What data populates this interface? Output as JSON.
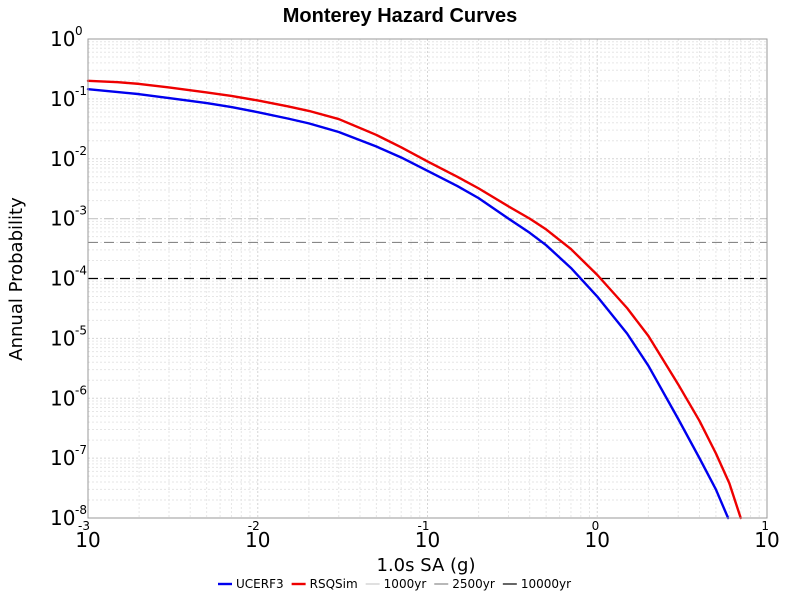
{
  "chart_data": {
    "type": "line",
    "title": "Monterey Hazard Curves",
    "xlabel": "1.0s SA (g)",
    "ylabel": "Annual Probability",
    "xscale": "log",
    "yscale": "log",
    "xlim": [
      0.001,
      10
    ],
    "ylim": [
      1e-08,
      1
    ],
    "x_ticks": [
      {
        "base": "10",
        "exp": "-3",
        "value": 0.001
      },
      {
        "base": "10",
        "exp": "-2",
        "value": 0.01
      },
      {
        "base": "10",
        "exp": "-1",
        "value": 0.1
      },
      {
        "base": "10",
        "exp": "0",
        "value": 1
      },
      {
        "base": "10",
        "exp": "1",
        "value": 10
      }
    ],
    "y_ticks": [
      {
        "base": "10",
        "exp": "0",
        "value": 1
      },
      {
        "base": "10",
        "exp": "-1",
        "value": 0.1
      },
      {
        "base": "10",
        "exp": "-2",
        "value": 0.01
      },
      {
        "base": "10",
        "exp": "-3",
        "value": 0.001
      },
      {
        "base": "10",
        "exp": "-4",
        "value": 0.0001
      },
      {
        "base": "10",
        "exp": "-5",
        "value": 1e-05
      },
      {
        "base": "10",
        "exp": "-6",
        "value": 1e-06
      },
      {
        "base": "10",
        "exp": "-7",
        "value": 1e-07
      },
      {
        "base": "10",
        "exp": "-8",
        "value": 1e-08
      }
    ],
    "grid": true,
    "legend_position": "bottom",
    "series": [
      {
        "name": "UCERF3",
        "color": "#0000ee",
        "points": [
          [
            0.001,
            0.145
          ],
          [
            0.0015,
            0.13
          ],
          [
            0.002,
            0.12
          ],
          [
            0.003,
            0.103
          ],
          [
            0.005,
            0.085
          ],
          [
            0.007,
            0.073
          ],
          [
            0.01,
            0.06
          ],
          [
            0.015,
            0.047
          ],
          [
            0.02,
            0.039
          ],
          [
            0.03,
            0.028
          ],
          [
            0.05,
            0.016
          ],
          [
            0.07,
            0.0105
          ],
          [
            0.1,
            0.0063
          ],
          [
            0.15,
            0.0035
          ],
          [
            0.2,
            0.0022
          ],
          [
            0.3,
            0.001
          ],
          [
            0.4,
            0.00058
          ],
          [
            0.5,
            0.00036
          ],
          [
            0.7,
            0.00015
          ],
          [
            1.0,
            5e-05
          ],
          [
            1.5,
            1.2e-05
          ],
          [
            2.0,
            3.5e-06
          ],
          [
            3.0,
            4.5e-07
          ],
          [
            4.0,
            1e-07
          ],
          [
            5.0,
            3e-08
          ],
          [
            5.9,
            1e-08
          ]
        ]
      },
      {
        "name": "RSQSim",
        "color": "#ee0000",
        "points": [
          [
            0.001,
            0.2
          ],
          [
            0.0015,
            0.19
          ],
          [
            0.002,
            0.178
          ],
          [
            0.003,
            0.155
          ],
          [
            0.005,
            0.128
          ],
          [
            0.007,
            0.112
          ],
          [
            0.01,
            0.094
          ],
          [
            0.015,
            0.075
          ],
          [
            0.02,
            0.063
          ],
          [
            0.03,
            0.046
          ],
          [
            0.05,
            0.025
          ],
          [
            0.07,
            0.0155
          ],
          [
            0.1,
            0.009
          ],
          [
            0.15,
            0.005
          ],
          [
            0.2,
            0.0032
          ],
          [
            0.3,
            0.0016
          ],
          [
            0.4,
            0.001
          ],
          [
            0.5,
            0.00066
          ],
          [
            0.7,
            0.00031
          ],
          [
            1.0,
            0.000115
          ],
          [
            1.5,
            3.2e-05
          ],
          [
            2.0,
            1.1e-05
          ],
          [
            3.0,
            1.7e-06
          ],
          [
            4.0,
            4.2e-07
          ],
          [
            5.0,
            1.2e-07
          ],
          [
            6.0,
            3.8e-08
          ],
          [
            7.0,
            1e-08
          ]
        ]
      }
    ],
    "reference_lines": [
      {
        "name": "1000yr",
        "value": 0.001,
        "color": "#cccccc"
      },
      {
        "name": "2500yr",
        "value": 0.0004,
        "color": "#888888"
      },
      {
        "name": "10000yr",
        "value": 0.0001,
        "color": "#000000"
      }
    ]
  }
}
